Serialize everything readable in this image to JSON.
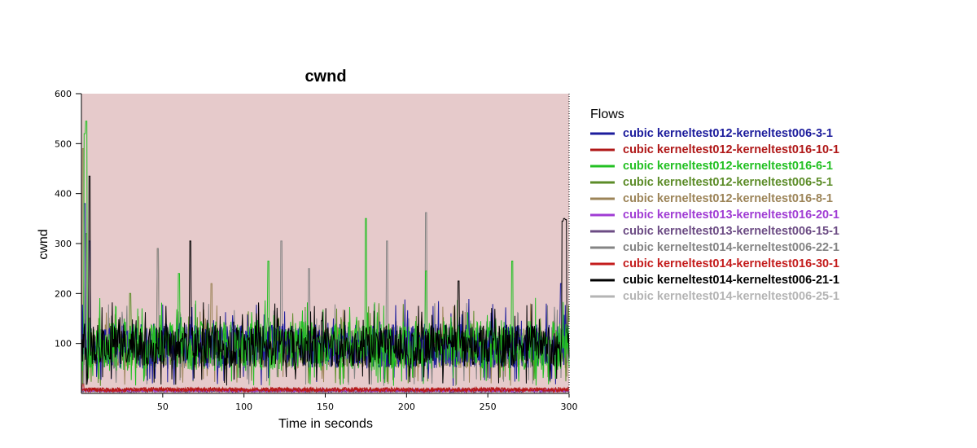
{
  "chart_data": {
    "type": "line",
    "title": "cwnd",
    "xlabel": "Time in seconds",
    "ylabel": "cwnd",
    "xlim": [
      0,
      300
    ],
    "ylim": [
      0,
      600
    ],
    "x_ticks": [
      50,
      100,
      150,
      200,
      250,
      300
    ],
    "y_ticks": [
      100,
      200,
      300,
      400,
      500,
      600
    ],
    "plot_background": "#e6cacb",
    "legend": {
      "title": "Flows",
      "placement": "right"
    },
    "series": [
      {
        "name": "cubic kerneltest012-kerneltest006-3-1",
        "color": "#1c1c9c",
        "base": 95,
        "spread": 45,
        "spikes": [
          [
            2,
            380
          ],
          [
            5,
            305
          ],
          [
            295,
            220
          ]
        ]
      },
      {
        "name": "cubic kerneltest012-kerneltest016-10-1",
        "color": "#b01818",
        "base": 8,
        "spread": 4,
        "spikes": [
          [
            1,
            20
          ]
        ]
      },
      {
        "name": "cubic kerneltest012-kerneltest016-6-1",
        "color": "#22c022",
        "base": 95,
        "spread": 50,
        "spikes": [
          [
            2,
            520
          ],
          [
            3,
            545
          ],
          [
            60,
            240
          ],
          [
            115,
            265
          ],
          [
            175,
            350
          ],
          [
            212,
            245
          ],
          [
            265,
            265
          ]
        ]
      },
      {
        "name": "cubic kerneltest012-kerneltest006-5-1",
        "color": "#5c8c28",
        "base": 92,
        "spread": 40,
        "spikes": [
          [
            3,
            320
          ],
          [
            30,
            200
          ]
        ]
      },
      {
        "name": "cubic kerneltest012-kerneltest016-8-1",
        "color": "#9c8458",
        "base": 90,
        "spread": 40,
        "spikes": [
          [
            1,
            490
          ],
          [
            47,
            290
          ],
          [
            80,
            220
          ]
        ]
      },
      {
        "name": "cubic kerneltest013-kerneltest016-20-1",
        "color": "#a03cd4",
        "base": 6,
        "spread": 3,
        "spikes": []
      },
      {
        "name": "cubic kerneltest013-kerneltest006-15-1",
        "color": "#6c4c84",
        "base": 5,
        "spread": 3,
        "spikes": []
      },
      {
        "name": "cubic kerneltest014-kerneltest006-22-1",
        "color": "#848484",
        "base": 92,
        "spread": 42,
        "spikes": [
          [
            47,
            290
          ],
          [
            123,
            305
          ],
          [
            212,
            362
          ],
          [
            188,
            305
          ],
          [
            140,
            250
          ]
        ]
      },
      {
        "name": "cubic kerneltest014-kerneltest016-30-1",
        "color": "#c41c1c",
        "base": 7,
        "spread": 4,
        "spikes": []
      },
      {
        "name": "cubic kerneltest014-kerneltest006-21-1",
        "color": "#000000",
        "base": 95,
        "spread": 42,
        "spikes": [
          [
            5,
            435
          ],
          [
            67,
            305
          ],
          [
            232,
            225
          ],
          [
            296,
            345
          ],
          [
            297,
            350
          ],
          [
            298,
            348
          ]
        ]
      },
      {
        "name": "cubic kerneltest014-kerneltest006-25-1",
        "color": "#b4b4b4",
        "base": 4,
        "spread": 2,
        "spikes": []
      }
    ]
  }
}
